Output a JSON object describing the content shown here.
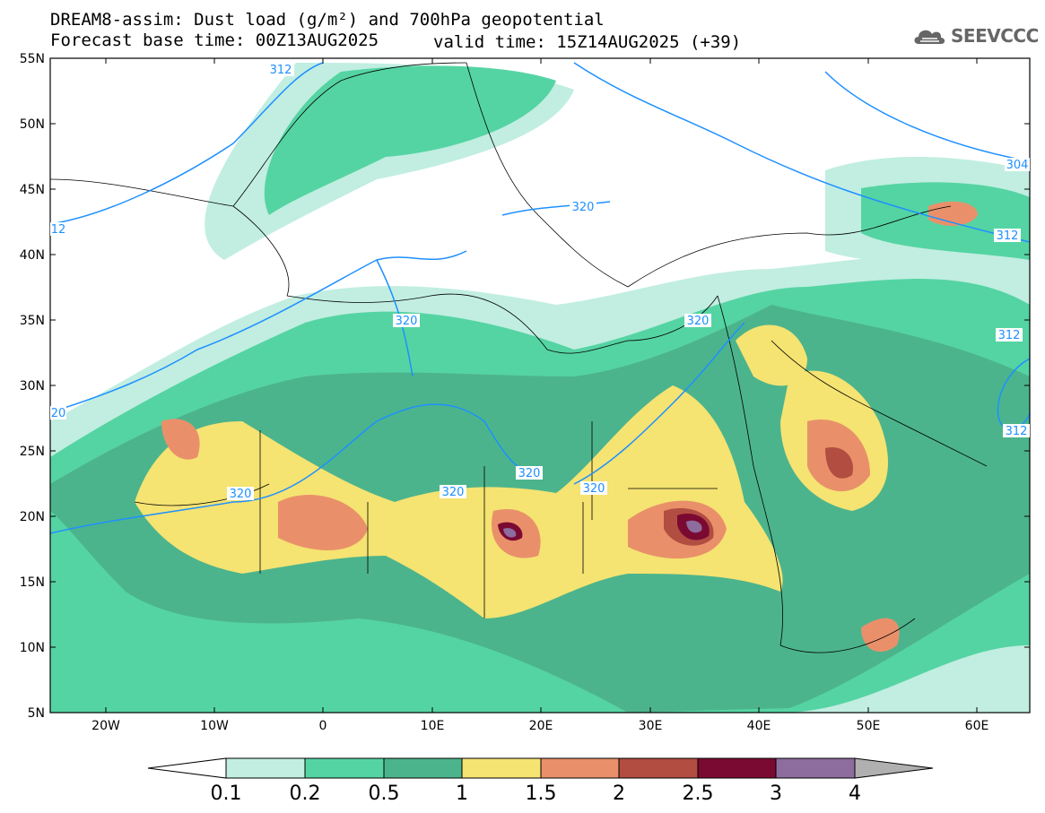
{
  "header": {
    "line1": "DREAM8-assim: Dust load (g/m²) and 700hPa geopotential",
    "line2": "Forecast base time: 00Z13AUG2025",
    "valid": "valid time: 15Z14AUG2025 (+39)"
  },
  "logo": {
    "text": "SEEVCCC",
    "icon": "cloud-icon"
  },
  "axes": {
    "lat_labels": [
      "55N",
      "50N",
      "45N",
      "40N",
      "35N",
      "30N",
      "25N",
      "20N",
      "15N",
      "10N",
      "5N"
    ],
    "lon_labels": [
      "20W",
      "10W",
      "0",
      "10E",
      "20E",
      "30E",
      "40E",
      "50E",
      "60E"
    ]
  },
  "contour_labels": [
    "312",
    "320",
    "12",
    "20",
    "320",
    "320",
    "320",
    "320",
    "320",
    "320",
    "304",
    "312",
    "312",
    "312"
  ],
  "colorbar": {
    "ticks": [
      "0.1",
      "0.2",
      "0.5",
      "1",
      "1.5",
      "2",
      "2.5",
      "3",
      "4"
    ],
    "colors": [
      "#c1eee1",
      "#55d4a3",
      "#4cb48c",
      "#f5e372",
      "#e9906a",
      "#b24d42",
      "#7b0a32",
      "#8d6c9e",
      "#b0b0b0"
    ],
    "under_color": "#ffffff"
  },
  "colors": {
    "geopotential_contour": "#1e90ff",
    "land_border": "#000000"
  }
}
